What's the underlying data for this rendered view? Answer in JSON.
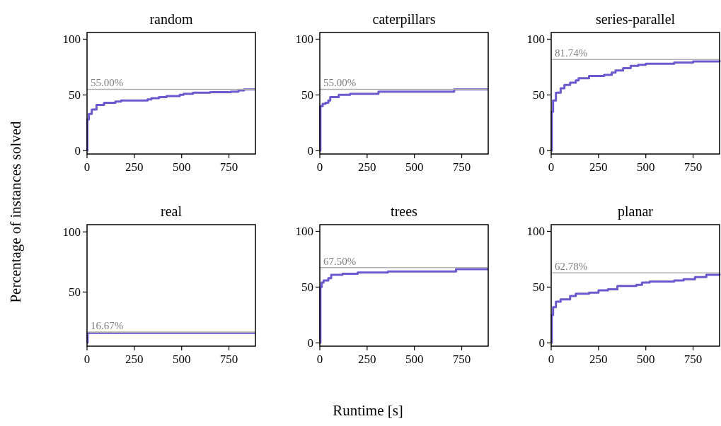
{
  "chart_data": [
    {
      "type": "step",
      "title": "random",
      "ylabel": "Percentage of instances solved",
      "xlim": [
        0,
        890
      ],
      "ylim": [
        -3,
        106
      ],
      "xticks": [
        0,
        250,
        500,
        750
      ],
      "yticks": [
        0,
        50,
        100
      ],
      "ref_lines": [
        {
          "axis": "y",
          "value": 55,
          "label": "55.00%",
          "color": "#b0b0b0"
        }
      ],
      "series": [
        {
          "color": "#6a5acd",
          "x": [
            0,
            2,
            10,
            25,
            50,
            90,
            150,
            180,
            320,
            340,
            380,
            420,
            490,
            510,
            560,
            650,
            760,
            800,
            830,
            890
          ],
          "values": [
            0,
            28,
            33,
            37,
            41,
            43,
            44,
            45,
            46,
            47,
            48,
            49,
            50,
            51,
            52,
            52.5,
            53,
            54,
            55,
            55
          ]
        }
      ]
    },
    {
      "type": "step",
      "title": "caterpillars",
      "xlim": [
        0,
        890
      ],
      "ylim": [
        -3,
        106
      ],
      "xticks": [
        0,
        250,
        500,
        750
      ],
      "yticks": [
        0,
        50,
        100
      ],
      "ref_lines": [
        {
          "axis": "y",
          "value": 55,
          "label": "55.00%",
          "color": "#b0b0b0"
        }
      ],
      "series": [
        {
          "color": "#6a5acd",
          "x": [
            0,
            3,
            15,
            30,
            45,
            55,
            100,
            160,
            310,
            710,
            890
          ],
          "values": [
            0,
            40,
            42,
            43,
            45,
            48,
            50,
            51,
            53,
            55,
            55
          ]
        }
      ]
    },
    {
      "type": "step",
      "title": "series-parallel",
      "xlim": [
        0,
        890
      ],
      "ylim": [
        -3,
        106
      ],
      "xticks": [
        0,
        250,
        500,
        750
      ],
      "yticks": [
        0,
        50,
        100
      ],
      "ref_lines": [
        {
          "axis": "y",
          "value": 81.74,
          "label": "81.74%",
          "color": "#b0b0b0"
        }
      ],
      "series": [
        {
          "color": "#6a5acd",
          "x": [
            0,
            3,
            10,
            25,
            50,
            70,
            100,
            130,
            145,
            200,
            280,
            320,
            340,
            380,
            420,
            460,
            500,
            650,
            750,
            890
          ],
          "values": [
            0,
            35,
            45,
            52,
            56,
            59,
            61,
            63,
            65,
            67,
            68,
            70,
            72,
            74,
            76,
            77,
            78,
            79,
            80,
            81
          ]
        }
      ]
    },
    {
      "type": "step",
      "title": "real",
      "xlim": [
        0,
        890
      ],
      "ylim": [
        5,
        106
      ],
      "xticks": [
        0,
        250,
        500,
        750
      ],
      "yticks": [
        50,
        100
      ],
      "ref_lines": [
        {
          "axis": "y",
          "value": 16.67,
          "label": "16.67%",
          "color": "#b0b0b0"
        }
      ],
      "series": [
        {
          "color": "#6a5acd",
          "x": [
            0,
            3,
            890
          ],
          "values": [
            8,
            16,
            16
          ]
        }
      ]
    },
    {
      "type": "step",
      "title": "trees",
      "xlabel": "Runtime [s]",
      "xlim": [
        0,
        890
      ],
      "ylim": [
        -3,
        106
      ],
      "xticks": [
        0,
        250,
        500,
        750
      ],
      "yticks": [
        0,
        50,
        100
      ],
      "ref_lines": [
        {
          "axis": "y",
          "value": 67.5,
          "label": "67.50%",
          "color": "#b0b0b0"
        }
      ],
      "series": [
        {
          "color": "#6a5acd",
          "x": [
            0,
            3,
            10,
            20,
            45,
            60,
            120,
            200,
            360,
            720,
            890
          ],
          "values": [
            0,
            50,
            54,
            56,
            58,
            61,
            62,
            63,
            64,
            66,
            66
          ]
        }
      ]
    },
    {
      "type": "step",
      "title": "planar",
      "xlim": [
        0,
        890
      ],
      "ylim": [
        -3,
        106
      ],
      "xticks": [
        0,
        250,
        500,
        750
      ],
      "yticks": [
        0,
        50,
        100
      ],
      "ref_lines": [
        {
          "axis": "y",
          "value": 62.78,
          "label": "62.78%",
          "color": "#b0b0b0"
        }
      ],
      "series": [
        {
          "color": "#6a5acd",
          "x": [
            0,
            3,
            10,
            25,
            50,
            100,
            130,
            200,
            250,
            300,
            350,
            450,
            480,
            520,
            650,
            700,
            760,
            820,
            890
          ],
          "values": [
            0,
            25,
            32,
            37,
            39,
            42,
            44,
            45,
            47,
            48,
            51,
            52,
            54,
            55,
            56,
            57,
            59,
            61,
            62
          ]
        }
      ]
    }
  ]
}
